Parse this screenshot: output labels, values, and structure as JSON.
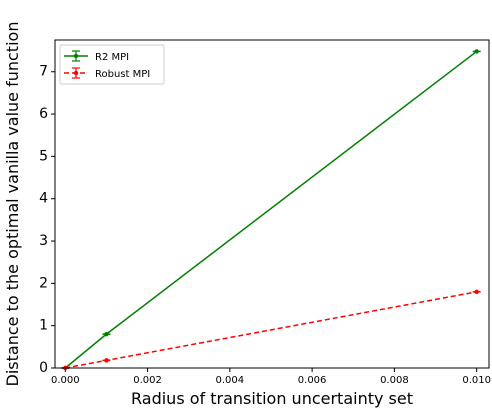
{
  "chart_data": {
    "type": "line",
    "xlabel": "Radius of transition uncertainty set",
    "ylabel": "Distance to the optimal vanilla value function",
    "xlim": [
      -0.00025,
      0.0103
    ],
    "ylim": [
      0,
      7.75
    ],
    "x_ticks": [
      "0.000",
      "0.002",
      "0.004",
      "0.006",
      "0.008",
      "0.010"
    ],
    "y_ticks": [
      "0",
      "1",
      "2",
      "3",
      "4",
      "5",
      "6",
      "7"
    ],
    "grid": false,
    "legend_position": "upper-left",
    "series": [
      {
        "name": "R2 MPI",
        "color": "#008000",
        "style": "solid",
        "x": [
          0.0,
          0.001,
          0.01
        ],
        "y": [
          0.0,
          0.8,
          7.48
        ],
        "err": [
          0.0,
          0.02,
          0.02
        ]
      },
      {
        "name": "Robust MPI",
        "color": "#ff0000",
        "style": "dashed",
        "x": [
          0.0,
          0.001,
          0.01
        ],
        "y": [
          0.0,
          0.18,
          1.8
        ],
        "err": [
          0.0,
          0.02,
          0.02
        ]
      }
    ]
  }
}
